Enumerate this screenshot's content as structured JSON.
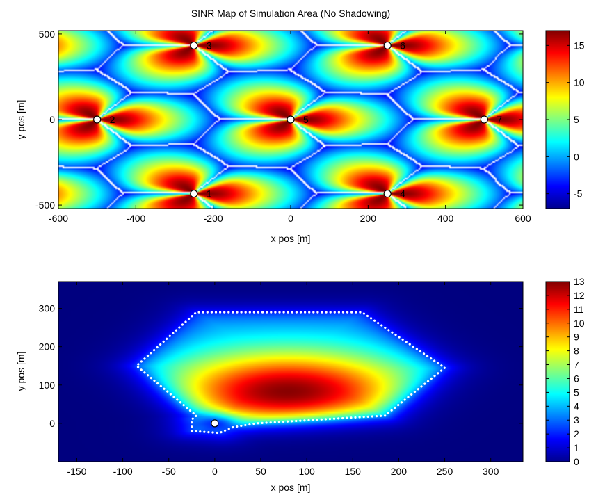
{
  "chart_data": [
    {
      "type": "heatmap",
      "title": "SINR Map of Simulation Area (No Shadowing)",
      "xlabel": "x pos [m]",
      "ylabel": "y pos [m]",
      "xlim": [
        -600,
        600
      ],
      "ylim": [
        -520,
        520
      ],
      "xticks": [
        -600,
        -400,
        -200,
        0,
        200,
        400,
        600
      ],
      "yticks": [
        -500,
        0,
        500
      ],
      "colorbar": {
        "min": -7,
        "max": 17,
        "ticks": [
          -5,
          0,
          5,
          10,
          15
        ]
      },
      "colormap": "jet",
      "base_stations": [
        {
          "label": "1",
          "x": -250,
          "y": -433
        },
        {
          "label": "2",
          "x": -500,
          "y": 0
        },
        {
          "label": "3",
          "x": -250,
          "y": 433
        },
        {
          "label": "4",
          "x": 250,
          "y": -433
        },
        {
          "label": "5",
          "x": 0,
          "y": 0
        },
        {
          "label": "6",
          "x": 250,
          "y": 433
        },
        {
          "label": "7",
          "x": 500,
          "y": 0
        }
      ],
      "sectors_per_site": 3,
      "boundary_color": "#ffffff"
    },
    {
      "type": "heatmap",
      "title": "",
      "xlabel": "x pos [m]",
      "ylabel": "y pos [m]",
      "xlim": [
        -170,
        335
      ],
      "ylim": [
        -100,
        370
      ],
      "xticks": [
        -150,
        -100,
        -50,
        0,
        50,
        100,
        150,
        200,
        250,
        300
      ],
      "yticks": [
        0,
        100,
        200,
        300
      ],
      "colorbar": {
        "min": 0,
        "max": 13,
        "ticks": [
          0,
          1,
          2,
          3,
          4,
          5,
          6,
          7,
          8,
          9,
          10,
          11,
          12,
          13
        ]
      },
      "colormap": "jet",
      "base_station": {
        "x": 0,
        "y": 0
      },
      "peak": {
        "x": 80,
        "y": 80,
        "value": 13
      },
      "cell_boundary": [
        [
          -25,
          -20
        ],
        [
          -25,
          10
        ],
        [
          -20,
          20
        ],
        [
          -85,
          150
        ],
        [
          -20,
          290
        ],
        [
          160,
          290
        ],
        [
          250,
          145
        ],
        [
          185,
          20
        ],
        [
          45,
          0
        ],
        [
          20,
          -10
        ],
        [
          5,
          -25
        ]
      ]
    }
  ]
}
